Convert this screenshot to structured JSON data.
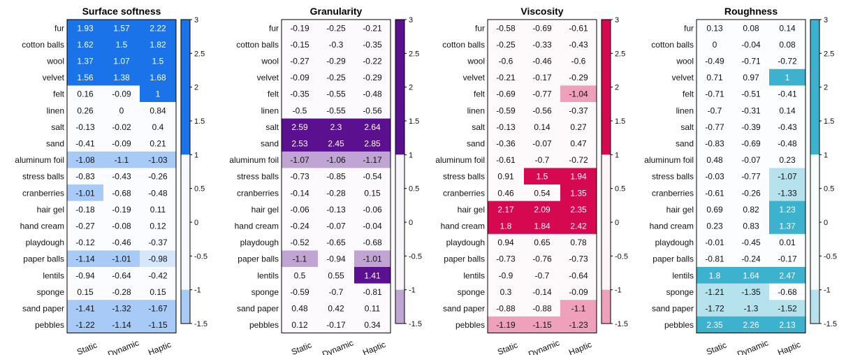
{
  "chart_data": [
    {
      "type": "heatmap",
      "title": "Surface softness",
      "accent": "#1a73e8",
      "columns": [
        "Static",
        "Dynamic",
        "Haptic"
      ],
      "rows": [
        "fur",
        "cotton balls",
        "wool",
        "velvet",
        "felt",
        "linen",
        "salt",
        "sand",
        "aluminum foil",
        "stress balls",
        "cranberries",
        "hair gel",
        "hand cream",
        "playdough",
        "paper balls",
        "lentils",
        "sponge",
        "sand paper",
        "pebbles"
      ],
      "values": [
        [
          1.93,
          1.57,
          2.22
        ],
        [
          1.62,
          1.5,
          1.82
        ],
        [
          1.37,
          1.07,
          1.5
        ],
        [
          1.56,
          1.38,
          1.68
        ],
        [
          0.16,
          -0.09,
          1
        ],
        [
          0.26,
          0,
          0.84
        ],
        [
          -0.13,
          -0.02,
          0.4
        ],
        [
          -0.41,
          -0.09,
          0.21
        ],
        [
          -1.08,
          -1.1,
          -1.03
        ],
        [
          -0.83,
          -0.43,
          -0.26
        ],
        [
          -1.01,
          -0.68,
          -0.48
        ],
        [
          -0.18,
          -0.19,
          0.11
        ],
        [
          -0.27,
          -0.08,
          0.12
        ],
        [
          -0.12,
          -0.46,
          -0.37
        ],
        [
          -1.14,
          -1.01,
          -0.98
        ],
        [
          -0.94,
          -0.64,
          -0.42
        ],
        [
          0.15,
          -0.28,
          0.15
        ],
        [
          -1.41,
          -1.32,
          -1.67
        ],
        [
          -1.22,
          -1.14,
          -1.15
        ]
      ],
      "colorbar_ticks": [
        "3",
        "2.5",
        "2",
        "1.5",
        "1",
        "0.5",
        "0",
        "-0.5",
        "-1",
        "-1.5"
      ]
    },
    {
      "type": "heatmap",
      "title": "Granularity",
      "accent": "#5a108f",
      "columns": [
        "Static",
        "Dynamic",
        "Haptic"
      ],
      "rows": [
        "fur",
        "cotton balls",
        "wool",
        "velvet",
        "felt",
        "linen",
        "salt",
        "sand",
        "aluminum foil",
        "stress balls",
        "cranberries",
        "hair gel",
        "hand cream",
        "playdough",
        "paper balls",
        "lentils",
        "sponge",
        "sand paper",
        "pebbles"
      ],
      "values": [
        [
          -0.19,
          -0.25,
          -0.21
        ],
        [
          -0.15,
          -0.3,
          -0.35
        ],
        [
          -0.27,
          -0.29,
          -0.22
        ],
        [
          -0.09,
          -0.25,
          -0.29
        ],
        [
          -0.35,
          -0.55,
          -0.48
        ],
        [
          -0.5,
          -0.55,
          -0.56
        ],
        [
          2.59,
          2.3,
          2.64
        ],
        [
          2.53,
          2.45,
          2.85
        ],
        [
          -1.07,
          -1.06,
          -1.17
        ],
        [
          -0.73,
          -0.85,
          -0.54
        ],
        [
          -0.14,
          -0.28,
          0.15
        ],
        [
          -0.06,
          -0.13,
          -0.06
        ],
        [
          -0.24,
          -0.07,
          -0.04
        ],
        [
          -0.52,
          -0.65,
          -0.68
        ],
        [
          -1.1,
          -0.94,
          -1.01
        ],
        [
          0.5,
          0.55,
          1.41
        ],
        [
          -0.59,
          -0.7,
          -0.81
        ],
        [
          0.48,
          0.42,
          0.11
        ],
        [
          0.12,
          -0.17,
          0.34
        ]
      ],
      "colorbar_ticks": [
        "3",
        "2.5",
        "2",
        "1.5",
        "1",
        "0.5",
        "0",
        "-0.5",
        "-1",
        "-1.5"
      ]
    },
    {
      "type": "heatmap",
      "title": "Viscosity",
      "accent": "#d6084f",
      "columns": [
        "Static",
        "Dynamic",
        "Haptic"
      ],
      "rows": [
        "fur",
        "cotton balls",
        "wool",
        "velvet",
        "felt",
        "linen",
        "salt",
        "sand",
        "aluminum foil",
        "stress balls",
        "cranberries",
        "hair gel",
        "hand cream",
        "playdough",
        "paper balls",
        "lentils",
        "sponge",
        "sand paper",
        "pebbles"
      ],
      "values": [
        [
          -0.58,
          -0.69,
          -0.61
        ],
        [
          -0.25,
          -0.33,
          -0.43
        ],
        [
          -0.6,
          -0.46,
          -0.6
        ],
        [
          -0.21,
          -0.17,
          -0.29
        ],
        [
          -0.69,
          -0.77,
          -1.04
        ],
        [
          -0.59,
          -0.56,
          -0.37
        ],
        [
          -0.13,
          0.14,
          0.27
        ],
        [
          -0.36,
          -0.07,
          0.47
        ],
        [
          -0.61,
          -0.7,
          -0.72
        ],
        [
          0.91,
          1.5,
          1.94
        ],
        [
          0.46,
          0.54,
          1.35
        ],
        [
          2.17,
          2.09,
          2.35
        ],
        [
          1.8,
          1.84,
          2.42
        ],
        [
          0.94,
          0.65,
          0.78
        ],
        [
          -0.73,
          -0.76,
          -0.73
        ],
        [
          -0.9,
          -0.7,
          -0.64
        ],
        [
          0.3,
          -0.14,
          -0.09
        ],
        [
          -0.88,
          -0.88,
          -1.1
        ],
        [
          -1.19,
          -1.15,
          -1.23
        ]
      ],
      "colorbar_ticks": [
        "3",
        "2.5",
        "2",
        "1.5",
        "1",
        "0.5",
        "0",
        "-0.5",
        "-1",
        "-1.5"
      ]
    },
    {
      "type": "heatmap",
      "title": "Roughness",
      "accent": "#3cb2cf",
      "columns": [
        "Static",
        "Dynamic",
        "Haptic"
      ],
      "rows": [
        "fur",
        "cotton balls",
        "wool",
        "velvet",
        "felt",
        "linen",
        "salt",
        "sand",
        "aluminum foil",
        "stress balls",
        "cranberries",
        "hair gel",
        "hand cream",
        "playdough",
        "paper balls",
        "lentils",
        "sponge",
        "sand paper",
        "pebbles"
      ],
      "values": [
        [
          0.13,
          0.08,
          0.14
        ],
        [
          0,
          -0.04,
          0.08
        ],
        [
          -0.49,
          -0.71,
          -0.72
        ],
        [
          0.71,
          0.97,
          1
        ],
        [
          -0.71,
          -0.51,
          -0.41
        ],
        [
          -0.7,
          -0.31,
          0.14
        ],
        [
          -0.77,
          -0.39,
          -0.43
        ],
        [
          -0.83,
          -0.69,
          -0.48
        ],
        [
          0.48,
          -0.07,
          0.23
        ],
        [
          -0.03,
          -0.77,
          -1.07
        ],
        [
          -0.61,
          -0.26,
          -1.33
        ],
        [
          0.69,
          0.82,
          1.23
        ],
        [
          0.23,
          0.83,
          1.37
        ],
        [
          -0.01,
          -0.45,
          0.01
        ],
        [
          -0.81,
          -0.24,
          -0.17
        ],
        [
          1.8,
          1.64,
          2.47
        ],
        [
          -1.21,
          -1.35,
          -0.68
        ],
        [
          -1.72,
          -1.3,
          -1.52
        ],
        [
          2.35,
          2.26,
          2.13
        ]
      ],
      "colorbar_ticks": [
        "3",
        "2.5",
        "2",
        "1.5",
        "1",
        "0.5",
        "0",
        "-0.5",
        "-1",
        "-1.5"
      ]
    }
  ]
}
